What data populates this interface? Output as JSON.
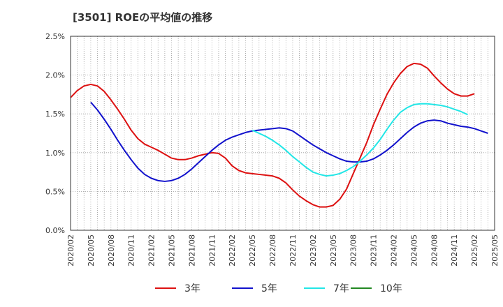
{
  "chart_data": {
    "type": "line",
    "title": "[3501]  ROEの平均値の推移",
    "xlabel": "",
    "ylabel": "",
    "ylim": [
      0,
      2.5
    ],
    "y_ticks": [
      "0.0%",
      "0.5%",
      "1.0%",
      "1.5%",
      "2.0%",
      "2.5%"
    ],
    "y_tick_values": [
      0,
      0.5,
      1.0,
      1.5,
      2.0,
      2.5
    ],
    "x_ticks": [
      "2020/02",
      "2020/05",
      "2020/08",
      "2020/11",
      "2021/02",
      "2021/05",
      "2021/08",
      "2021/11",
      "2022/02",
      "2022/05",
      "2022/08",
      "2022/11",
      "2023/02",
      "2023/05",
      "2023/08",
      "2023/11",
      "2024/02",
      "2024/05",
      "2024/08",
      "2024/11",
      "2025/02",
      "2025/05"
    ],
    "x_months_range": [
      0,
      63
    ],
    "grid": true,
    "legend_position": "bottom",
    "series": [
      {
        "name": "3年",
        "color": "#dd1111",
        "start_month": 0,
        "values": [
          1.71,
          1.8,
          1.86,
          1.88,
          1.86,
          1.79,
          1.68,
          1.56,
          1.43,
          1.29,
          1.18,
          1.11,
          1.07,
          1.03,
          0.98,
          0.93,
          0.91,
          0.91,
          0.93,
          0.96,
          0.98,
          1.0,
          0.99,
          0.93,
          0.83,
          0.77,
          0.74,
          0.73,
          0.72,
          0.71,
          0.7,
          0.67,
          0.61,
          0.52,
          0.44,
          0.38,
          0.33,
          0.3,
          0.3,
          0.32,
          0.4,
          0.53,
          0.73,
          0.93,
          1.13,
          1.36,
          1.56,
          1.75,
          1.9,
          2.02,
          2.11,
          2.15,
          2.14,
          2.09,
          1.99,
          1.9,
          1.82,
          1.76,
          1.73,
          1.73,
          1.76
        ]
      },
      {
        "name": "5年",
        "color": "#1111cc",
        "start_month": 3,
        "values": [
          1.65,
          1.55,
          1.43,
          1.3,
          1.16,
          1.03,
          0.91,
          0.8,
          0.72,
          0.67,
          0.64,
          0.63,
          0.64,
          0.67,
          0.72,
          0.79,
          0.87,
          0.95,
          1.03,
          1.1,
          1.16,
          1.2,
          1.23,
          1.26,
          1.28,
          1.29,
          1.3,
          1.31,
          1.32,
          1.31,
          1.28,
          1.22,
          1.16,
          1.1,
          1.05,
          1.0,
          0.96,
          0.92,
          0.89,
          0.88,
          0.88,
          0.89,
          0.92,
          0.97,
          1.03,
          1.1,
          1.18,
          1.26,
          1.33,
          1.38,
          1.41,
          1.42,
          1.41,
          1.38,
          1.36,
          1.34,
          1.33,
          1.31,
          1.28,
          1.25
        ]
      },
      {
        "name": "7年",
        "color": "#22e6e6",
        "start_month": 27,
        "values": [
          1.29,
          1.25,
          1.21,
          1.16,
          1.1,
          1.03,
          0.95,
          0.88,
          0.81,
          0.75,
          0.72,
          0.7,
          0.71,
          0.73,
          0.77,
          0.82,
          0.89,
          0.97,
          1.06,
          1.17,
          1.3,
          1.42,
          1.52,
          1.58,
          1.62,
          1.63,
          1.63,
          1.62,
          1.61,
          1.59,
          1.56,
          1.53,
          1.49
        ]
      },
      {
        "name": "10年",
        "color": "#228822",
        "start_month": 0,
        "values": []
      }
    ]
  }
}
